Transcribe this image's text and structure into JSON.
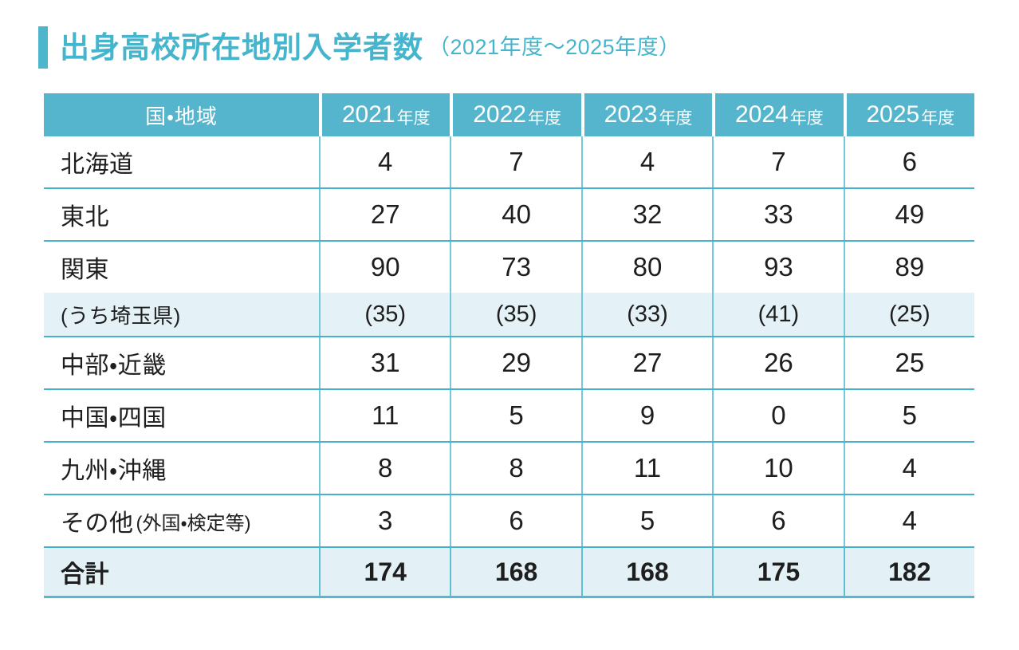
{
  "title": {
    "text": "出身高校所在地別入学者数",
    "subtitle": "（2021年度～2025年度）"
  },
  "table": {
    "region_header": "国・地域",
    "year_columns": [
      {
        "year": "2021",
        "unit": "年度"
      },
      {
        "year": "2022",
        "unit": "年度"
      },
      {
        "year": "2023",
        "unit": "年度"
      },
      {
        "year": "2024",
        "unit": "年度"
      },
      {
        "year": "2025",
        "unit": "年度"
      }
    ],
    "rows": [
      {
        "label": "北海道",
        "values": [
          "4",
          "7",
          "4",
          "7",
          "6"
        ]
      },
      {
        "label": "東北",
        "values": [
          "27",
          "40",
          "32",
          "33",
          "49"
        ]
      },
      {
        "label": "関東",
        "values": [
          "90",
          "73",
          "80",
          "93",
          "89"
        ]
      },
      {
        "label": "(うち埼玉県)",
        "values": [
          "(35)",
          "(35)",
          "(33)",
          "(41)",
          "(25)"
        ]
      },
      {
        "label": "中部・近畿",
        "values": [
          "31",
          "29",
          "27",
          "26",
          "25"
        ]
      },
      {
        "label": "中国・四国",
        "values": [
          "11",
          "5",
          "9",
          "0",
          "5"
        ]
      },
      {
        "label": "九州・沖縄",
        "values": [
          "8",
          "8",
          "11",
          "10",
          "4"
        ]
      },
      {
        "label": "その他",
        "label_note": "(外国・検定等)",
        "values": [
          "3",
          "6",
          "5",
          "6",
          "4"
        ]
      },
      {
        "label": "合計",
        "values": [
          "174",
          "168",
          "168",
          "175",
          "182"
        ]
      }
    ]
  },
  "colors": {
    "header_teal": "#54b5cc",
    "title_teal": "#45b5cd",
    "row_highlight": "#e4f1f7",
    "border_teal": "#46b2ce"
  }
}
